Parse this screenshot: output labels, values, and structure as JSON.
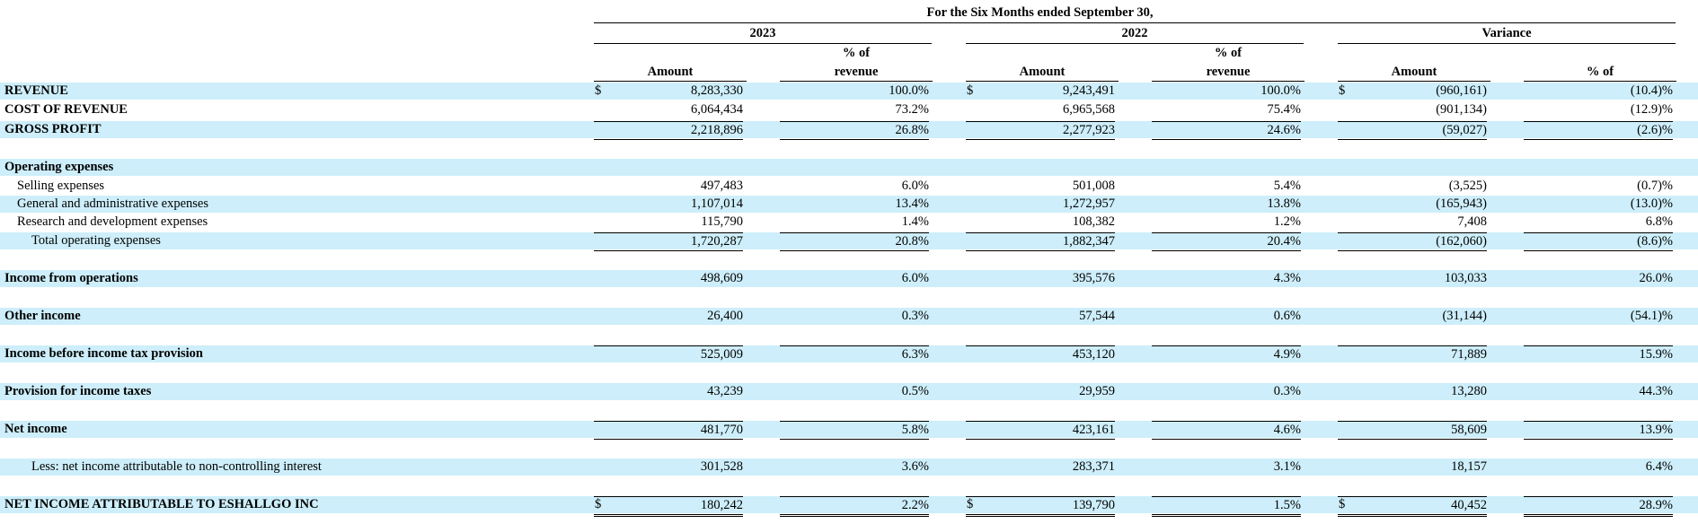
{
  "table": {
    "period_title": "For the Six Months ended September 30,",
    "groups": [
      "2023",
      "2022",
      "Variance"
    ],
    "subheaders": {
      "amount": "Amount",
      "pct_line1": "% of",
      "pct_line2": "revenue",
      "variance_pct": "% of"
    },
    "rows": [
      {
        "label": "REVENUE",
        "style": "bold",
        "shade": true,
        "dollar": true,
        "c": [
          "8,283,330",
          "100.0%",
          "9,243,491",
          "100.0%",
          "(960,161)",
          "(10.4)%"
        ]
      },
      {
        "label": "COST OF REVENUE",
        "style": "bold",
        "shade": false,
        "c": [
          "6,064,434",
          "73.2%",
          "6,965,568",
          "75.4%",
          "(901,134)",
          "(12.9)%"
        ]
      },
      {
        "label": "GROSS PROFIT",
        "style": "bold",
        "shade": true,
        "ol": true,
        "ul": "single",
        "c": [
          "2,218,896",
          "26.8%",
          "2,277,923",
          "24.6%",
          "(59,027)",
          "(2.6)%"
        ]
      },
      {
        "label": "Operating expenses",
        "style": "bold",
        "shade": true,
        "c": [
          "",
          "",
          "",
          "",
          "",
          ""
        ]
      },
      {
        "label": "Selling expenses",
        "style": "i1",
        "shade": false,
        "c": [
          "497,483",
          "6.0%",
          "501,008",
          "5.4%",
          "(3,525)",
          "(0.7)%"
        ]
      },
      {
        "label": "General and administrative expenses",
        "style": "i1",
        "shade": true,
        "c": [
          "1,107,014",
          "13.4%",
          "1,272,957",
          "13.8%",
          "(165,943)",
          "(13.0)%"
        ]
      },
      {
        "label": "Research and development expenses",
        "style": "i1",
        "shade": false,
        "c": [
          "115,790",
          "1.4%",
          "108,382",
          "1.2%",
          "7,408",
          "6.8%"
        ]
      },
      {
        "label": "Total operating expenses",
        "style": "i2",
        "shade": true,
        "ol": true,
        "ul": "single",
        "c": [
          "1,720,287",
          "20.8%",
          "1,882,347",
          "20.4%",
          "(162,060)",
          "(8.6)%"
        ]
      },
      {
        "label": "Income from operations",
        "style": "bold",
        "shade": true,
        "c": [
          "498,609",
          "6.0%",
          "395,576",
          "4.3%",
          "103,033",
          "26.0%"
        ]
      },
      {
        "label": "Other income",
        "style": "bold",
        "shade": true,
        "c": [
          "26,400",
          "0.3%",
          "57,544",
          "0.6%",
          "(31,144)",
          "(54.1)%"
        ]
      },
      {
        "label": "Income before income tax provision",
        "style": "bold",
        "shade": true,
        "ol": true,
        "c": [
          "525,009",
          "6.3%",
          "453,120",
          "4.9%",
          "71,889",
          "15.9%"
        ]
      },
      {
        "label": "Provision for income taxes",
        "style": "bold",
        "shade": true,
        "c": [
          "43,239",
          "0.5%",
          "29,959",
          "0.3%",
          "13,280",
          "44.3%"
        ]
      },
      {
        "label": "Net income",
        "style": "bold",
        "shade": true,
        "ol": true,
        "ul": "single",
        "c": [
          "481,770",
          "5.8%",
          "423,161",
          "4.6%",
          "58,609",
          "13.9%"
        ]
      },
      {
        "label": "Less: net income attributable to non-controlling interest",
        "style": "i2",
        "shade": true,
        "c": [
          "301,528",
          "3.6%",
          "283,371",
          "3.1%",
          "18,157",
          "6.4%"
        ]
      },
      {
        "label": "NET INCOME ATTRIBUTABLE TO ESHALLGO INC",
        "style": "bold",
        "shade": true,
        "dollar": true,
        "ol": true,
        "ul": "double",
        "c": [
          "180,242",
          "2.2%",
          "139,790",
          "1.5%",
          "40,452",
          "28.9%"
        ]
      }
    ],
    "currency_symbol": "$"
  }
}
